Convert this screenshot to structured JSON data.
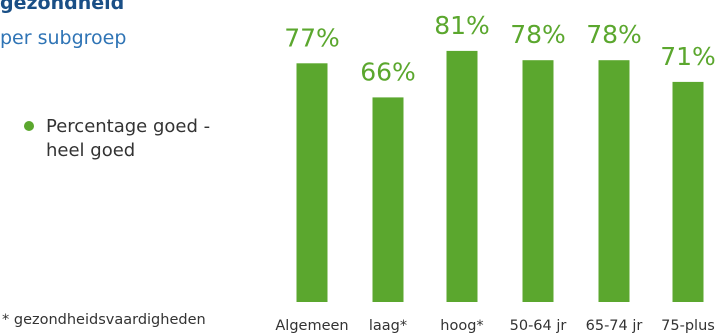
{
  "title": "gezondheid",
  "subtitle": "per subgroep",
  "legend": {
    "label": "Percentage goed - heel goed"
  },
  "footnote": "* gezondheidsvaardigheden",
  "colors": {
    "bar": "#5ba72e",
    "value_label": "#5ba72e",
    "title": "#1a4f86",
    "subtitle": "#2f74b5"
  },
  "chart_data": {
    "type": "bar",
    "categories": [
      "Algemeen",
      "laag*",
      "hoog*",
      "50-64 jr",
      "65-74 jr",
      "75-plus"
    ],
    "series": [
      {
        "name": "Percentage goed - heel goed",
        "values": [
          77,
          66,
          81,
          78,
          78,
          71
        ]
      }
    ],
    "value_labels": [
      "77%",
      "66%",
      "81%",
      "78%",
      "78%",
      "71%"
    ],
    "ylim": [
      0,
      100
    ],
    "grid": false,
    "legend_position": "left"
  }
}
